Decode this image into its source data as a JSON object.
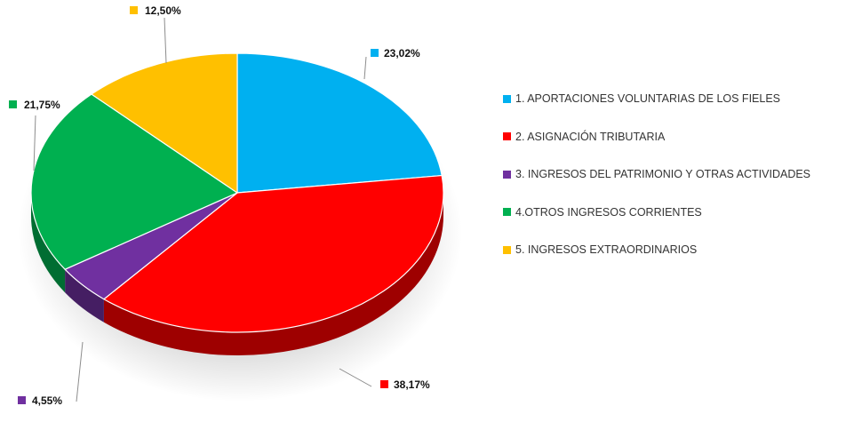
{
  "chart_data": {
    "type": "pie",
    "style": "3d",
    "legend_position": "right",
    "slices": [
      {
        "name": "1. APORTACIONES VOLUNTARIAS DE LOS FIELES",
        "label": "23,02%",
        "value": 23.02,
        "color": "#00B0F0"
      },
      {
        "name": "2. ASIGNACIÓN TRIBUTARIA",
        "label": "38,17%",
        "value": 38.17,
        "color": "#FF0000"
      },
      {
        "name": "3. INGRESOS DEL PATRIMONIO Y OTRAS ACTIVIDADES",
        "label": "4,55%",
        "value": 4.55,
        "color": "#7030A0"
      },
      {
        "name": "4.OTROS INGRESOS CORRIENTES",
        "label": "21,75%",
        "value": 21.75,
        "color": "#00B050"
      },
      {
        "name": "5. INGRESOS EXTRAORDINARIOS",
        "label": "12,50%",
        "value": 12.5,
        "color": "#FFC000"
      }
    ]
  }
}
